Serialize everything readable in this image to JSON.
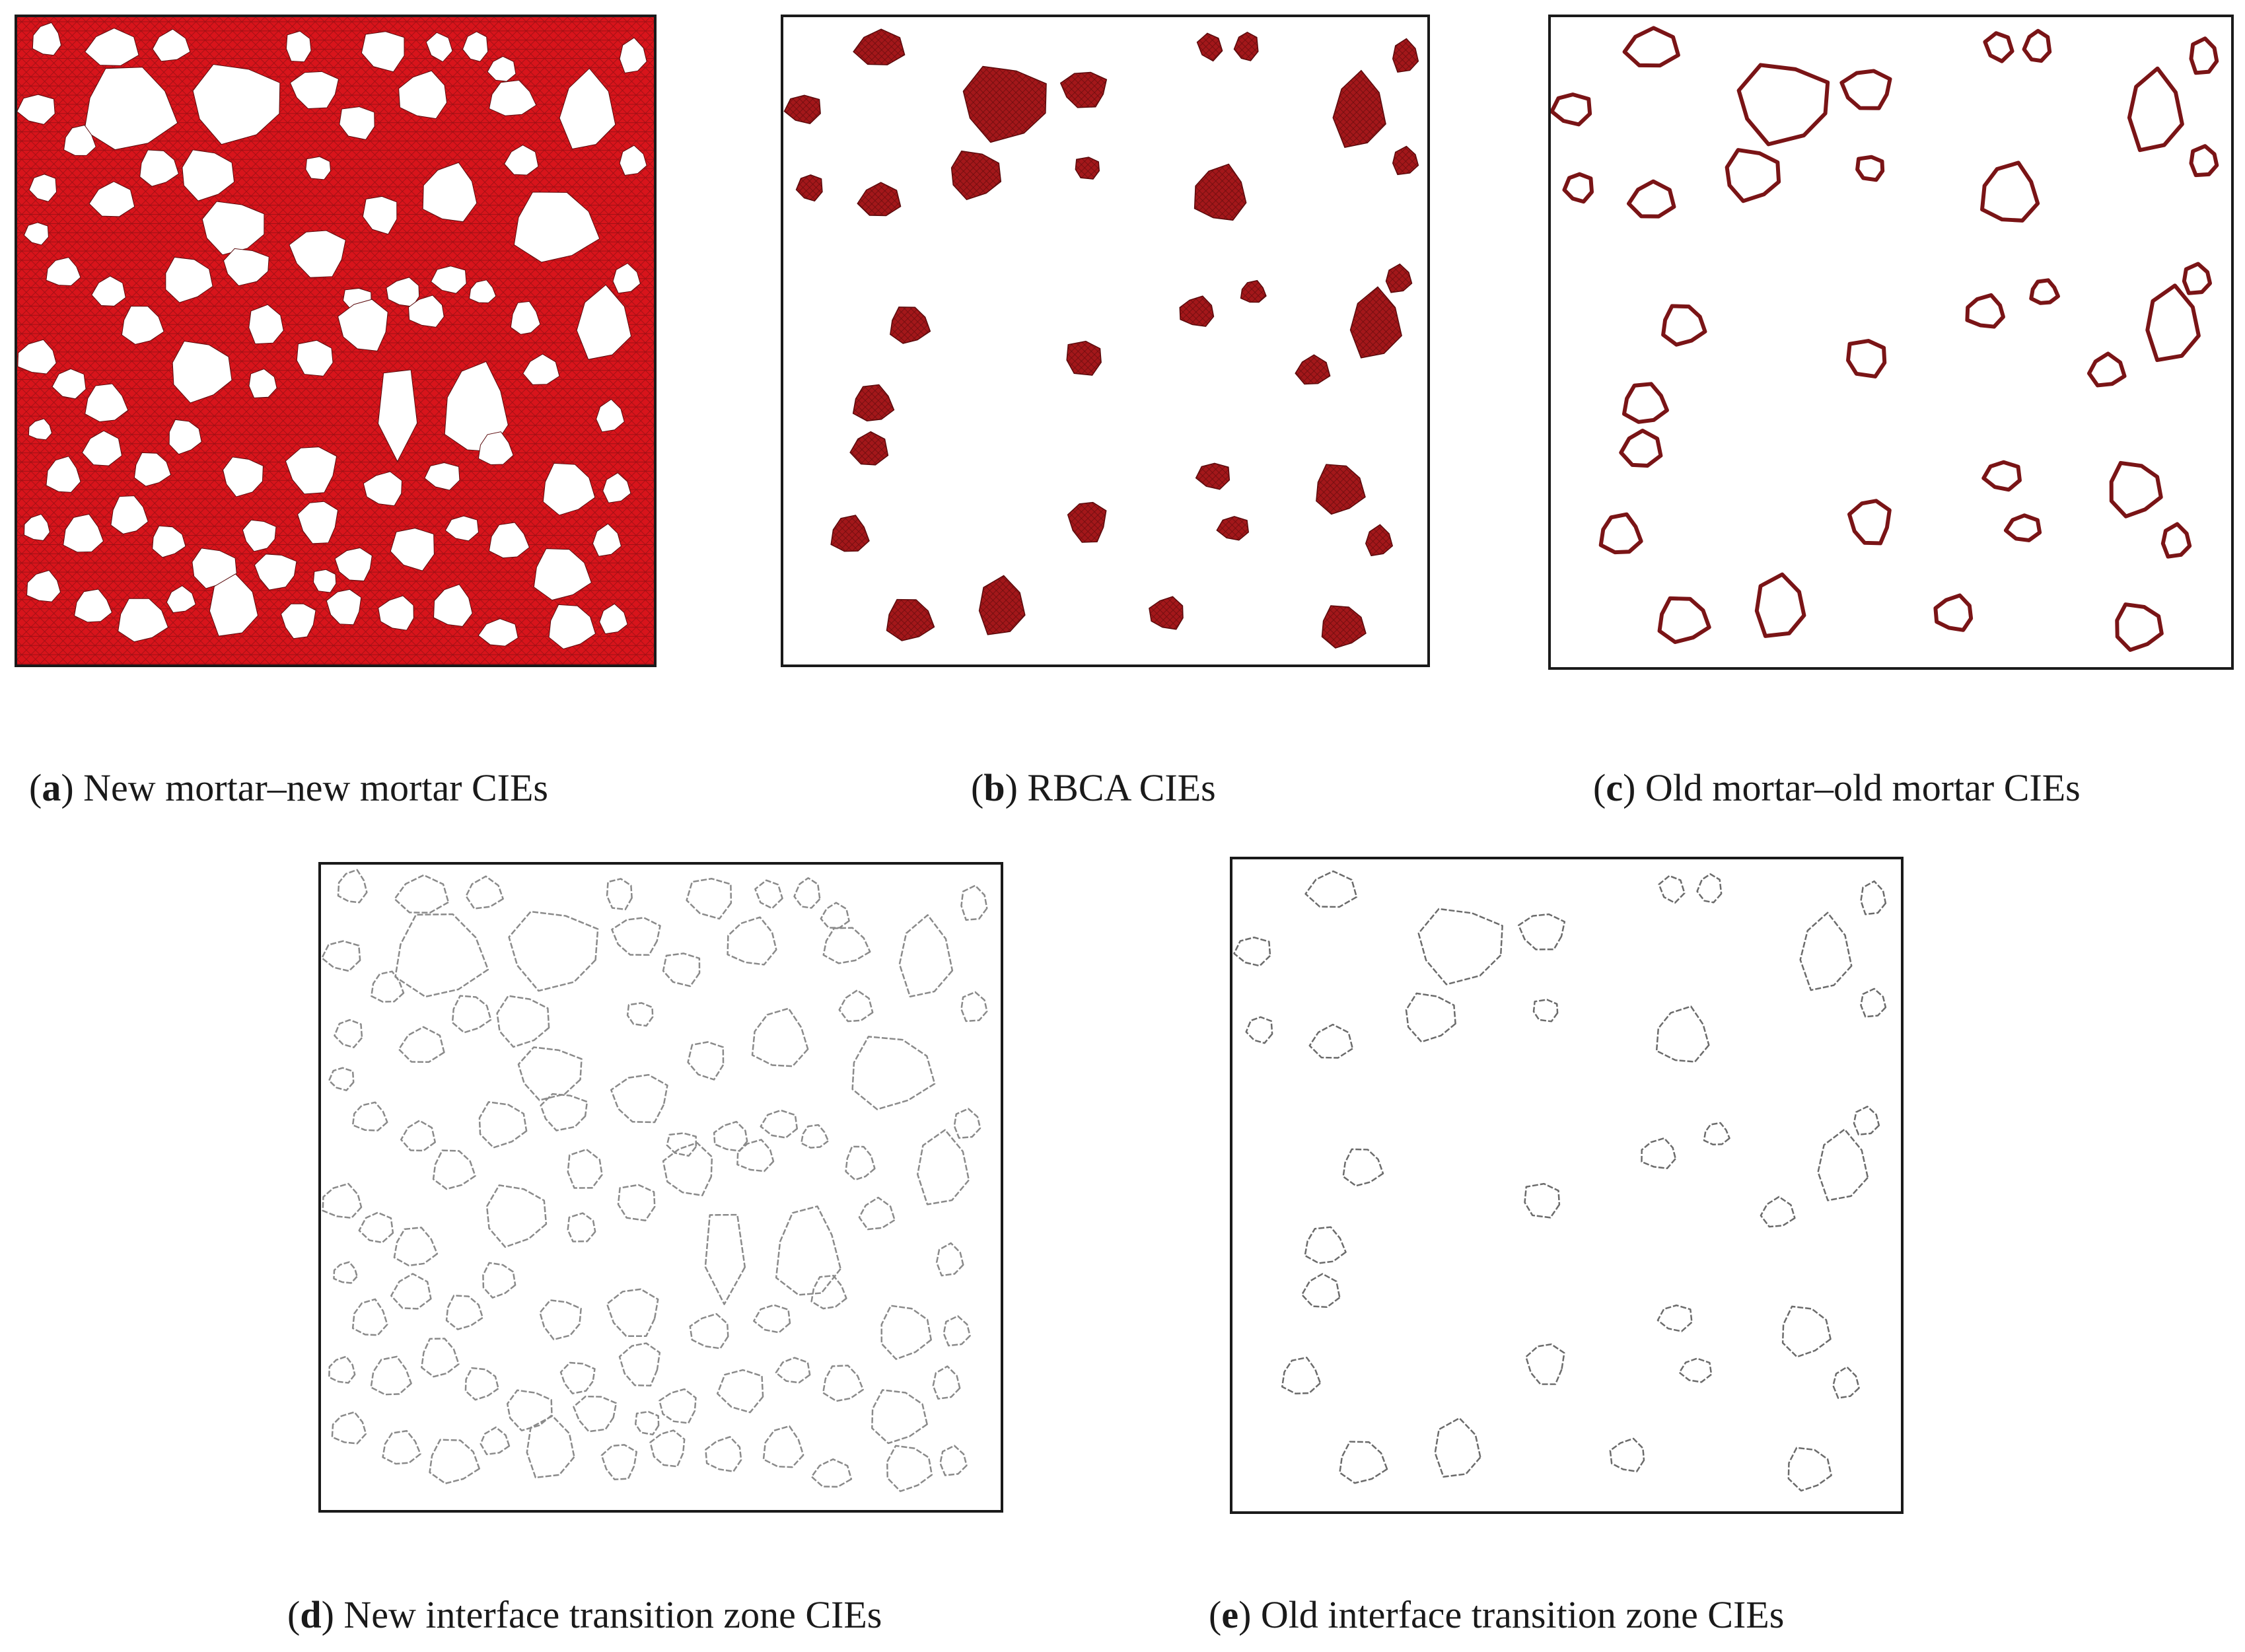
{
  "figure": {
    "panels": [
      {
        "id": "a",
        "label": "a",
        "caption": "New mortar–new mortar CIEs",
        "fill_color": "#d8141b"
      },
      {
        "id": "b",
        "label": "b",
        "caption": "RBCA CIEs",
        "fill_color": "#a3171a"
      },
      {
        "id": "c",
        "label": "c",
        "caption": "Old mortar–old mortar CIEs",
        "stroke_color": "#7a1416"
      },
      {
        "id": "d",
        "label": "d",
        "caption": "New interface transition zone CIEs",
        "stroke_color": "#8a8a8a"
      },
      {
        "id": "e",
        "label": "e",
        "caption": "Old interface transition zone CIEs",
        "stroke_color": "#6b6b6b"
      }
    ]
  }
}
